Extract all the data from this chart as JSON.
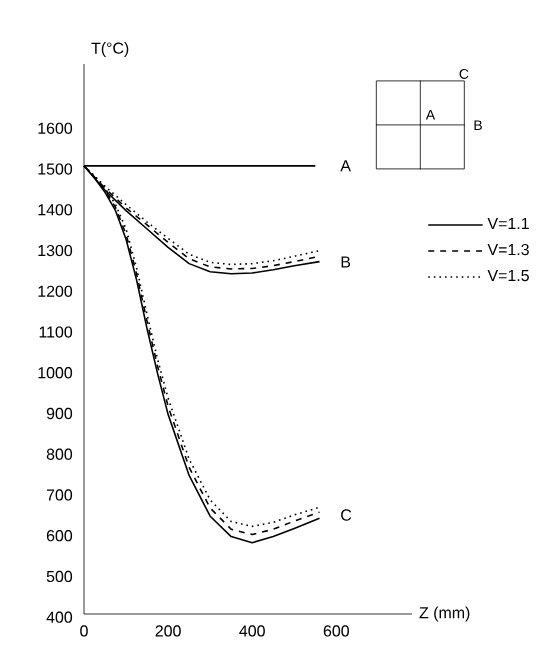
{
  "chart_data": {
    "type": "line",
    "xlabel": "Z (mm)",
    "ylabel": "T(°C)",
    "xlim": [
      0,
      780
    ],
    "ylim": [
      400,
      1750
    ],
    "xticks": [
      0,
      200,
      400,
      600
    ],
    "yticks": [
      400,
      500,
      600,
      700,
      800,
      900,
      1000,
      1100,
      1200,
      1300,
      1400,
      1500,
      1600
    ],
    "grid": false,
    "legend": "right",
    "marker": "none",
    "annotations": [
      "A",
      "B",
      "C",
      "A",
      "B",
      "C"
    ],
    "series": [
      {
        "color": "#000000",
        "line_style": "solid",
        "x": [
          0,
          550
        ],
        "values": [
          1500,
          1500
        ]
      },
      {
        "name": "V=1.1",
        "color": "#000000",
        "line_style": "solid",
        "x": [
          0,
          50,
          100,
          150,
          200,
          250,
          300,
          350,
          400,
          450,
          500,
          560
        ],
        "values": [
          1500,
          1440,
          1390,
          1345,
          1300,
          1260,
          1240,
          1235,
          1237,
          1245,
          1255,
          1265
        ]
      },
      {
        "name": "V=1.3",
        "color": "#000000",
        "line_style": "dashed",
        "x": [
          0,
          50,
          100,
          150,
          200,
          250,
          300,
          350,
          400,
          450,
          500,
          560
        ],
        "values": [
          1500,
          1445,
          1397,
          1355,
          1312,
          1272,
          1252,
          1247,
          1248,
          1255,
          1265,
          1278
        ]
      },
      {
        "name": "V=1.5",
        "color": "#000000",
        "line_style": "dotted",
        "x": [
          0,
          50,
          100,
          150,
          200,
          250,
          300,
          350,
          400,
          450,
          500,
          560
        ],
        "values": [
          1500,
          1450,
          1405,
          1362,
          1322,
          1283,
          1263,
          1258,
          1260,
          1267,
          1278,
          1292
        ]
      },
      {
        "color": "#000000",
        "line_style": "solid",
        "x": [
          0,
          25,
          50,
          75,
          100,
          125,
          150,
          175,
          200,
          250,
          300,
          350,
          400,
          450,
          500,
          560
        ],
        "values": [
          1500,
          1470,
          1435,
          1390,
          1320,
          1220,
          1100,
          990,
          890,
          740,
          640,
          590,
          575,
          590,
          610,
          635
        ]
      },
      {
        "color": "#000000",
        "line_style": "dashed",
        "x": [
          0,
          25,
          50,
          75,
          100,
          125,
          150,
          175,
          200,
          250,
          300,
          350,
          400,
          450,
          500,
          560
        ],
        "values": [
          1500,
          1472,
          1440,
          1398,
          1332,
          1235,
          1118,
          1008,
          910,
          760,
          660,
          608,
          595,
          608,
          628,
          650
        ]
      },
      {
        "color": "#000000",
        "line_style": "dotted",
        "x": [
          0,
          25,
          50,
          75,
          100,
          125,
          150,
          175,
          200,
          250,
          300,
          350,
          400,
          450,
          500,
          560
        ],
        "values": [
          1500,
          1475,
          1445,
          1405,
          1345,
          1250,
          1135,
          1025,
          930,
          780,
          680,
          627,
          615,
          625,
          643,
          662
        ]
      }
    ]
  }
}
